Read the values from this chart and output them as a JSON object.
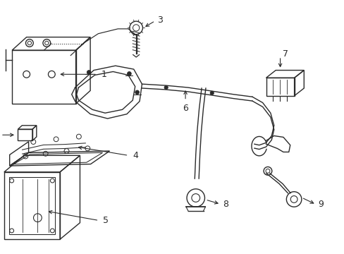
{
  "background_color": "#ffffff",
  "line_color": "#2a2a2a",
  "line_width": 1.0,
  "label_fontsize": 9,
  "fig_w": 4.89,
  "fig_h": 3.6,
  "dpi": 100
}
